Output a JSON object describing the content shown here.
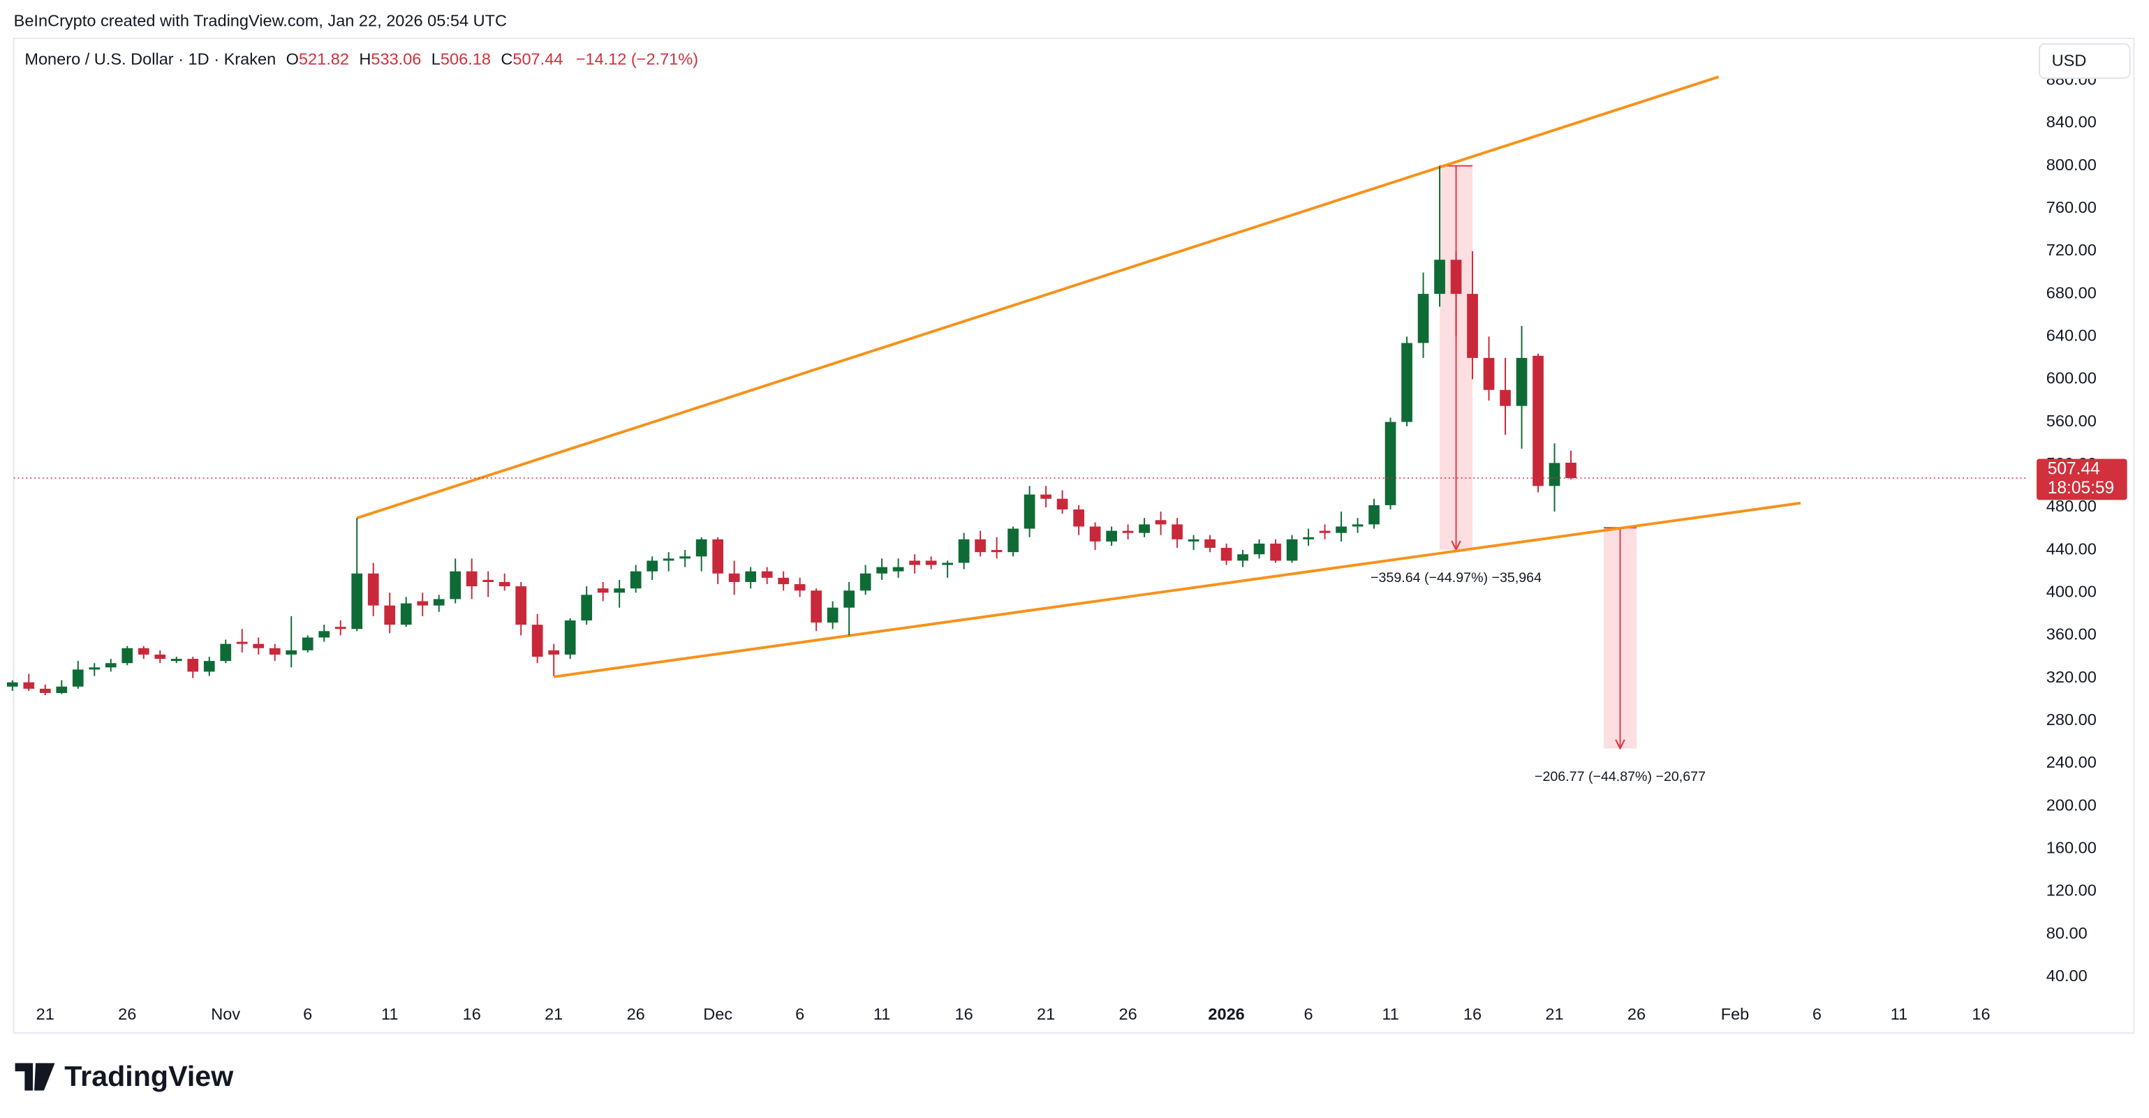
{
  "header": {
    "credit": "BeInCrypto created with TradingView.com, Jan 22, 2026 05:54 UTC"
  },
  "currency_button": "USD",
  "footer": {
    "brand": "TradingView"
  },
  "chart_data": {
    "type": "candlestick",
    "title": "Monero / U.S. Dollar · 1D · Kraken",
    "ohlc_labels": [
      "O",
      "H",
      "L",
      "C"
    ],
    "change": "−14.12 (−2.71%)",
    "countdown": "18:05:59",
    "up_color": "#0e6b35",
    "down_color": "#c9283a",
    "categories": [
      "Oct 19",
      "Oct 20",
      "Oct 21",
      "Oct 22",
      "Oct 23",
      "Oct 24",
      "Oct 25",
      "Oct 26",
      "Oct 27",
      "Oct 28",
      "Oct 29",
      "Oct 30",
      "Oct 31",
      "Nov 1",
      "Nov 2",
      "Nov 3",
      "Nov 4",
      "Nov 5",
      "Nov 6",
      "Nov 7",
      "Nov 8",
      "Nov 9",
      "Nov 10",
      "Nov 11",
      "Nov 12",
      "Nov 13",
      "Nov 14",
      "Nov 15",
      "Nov 16",
      "Nov 17",
      "Nov 18",
      "Nov 19",
      "Nov 20",
      "Nov 21",
      "Nov 22",
      "Nov 23",
      "Nov 24",
      "Nov 25",
      "Nov 26",
      "Nov 27",
      "Nov 28",
      "Nov 29",
      "Nov 30",
      "Dec 1",
      "Dec 2",
      "Dec 3",
      "Dec 4",
      "Dec 5",
      "Dec 6",
      "Dec 7",
      "Dec 8",
      "Dec 9",
      "Dec 10",
      "Dec 11",
      "Dec 12",
      "Dec 13",
      "Dec 14",
      "Dec 15",
      "Dec 16",
      "Dec 17",
      "Dec 18",
      "Dec 19",
      "Dec 20",
      "Dec 21",
      "Dec 22",
      "Dec 23",
      "Dec 24",
      "Dec 25",
      "Dec 26",
      "Dec 27",
      "Dec 28",
      "Dec 29",
      "Dec 30",
      "Dec 31",
      "Jan 1",
      "Jan 2",
      "Jan 3",
      "Jan 4",
      "Jan 5",
      "Jan 6",
      "Jan 7",
      "Jan 8",
      "Jan 9",
      "Jan 10",
      "Jan 11",
      "Jan 12",
      "Jan 13",
      "Jan 14",
      "Jan 15",
      "Jan 16",
      "Jan 17",
      "Jan 18",
      "Jan 19",
      "Jan 20",
      "Jan 21",
      "Jan 22",
      "Jan 23",
      "Jan 24",
      "Jan 25",
      "Jan 26",
      "Jan 27",
      "Jan 28",
      "Jan 29",
      "Jan 30",
      "Jan 31",
      "Feb 1",
      "Feb 2",
      "Feb 3",
      "Feb 4",
      "Feb 5",
      "Feb 6",
      "Feb 7",
      "Feb 8",
      "Feb 9",
      "Feb 10",
      "Feb 11",
      "Feb 12",
      "Feb 13",
      "Feb 14",
      "Feb 15",
      "Feb 16",
      "Feb 17",
      "Feb 18"
    ],
    "open": [
      312,
      316,
      310,
      306,
      312,
      328,
      330,
      334,
      348,
      342,
      336,
      338,
      326,
      336,
      354,
      352,
      348,
      342,
      346,
      358,
      368,
      366,
      418,
      388,
      370,
      392,
      388,
      394,
      420,
      412,
      410,
      406,
      370,
      346,
      342,
      374,
      404,
      400,
      404,
      420,
      430,
      432,
      434,
      450,
      418,
      410,
      420,
      414,
      408,
      402,
      372,
      386,
      402,
      418,
      420,
      430,
      430,
      426,
      428,
      450,
      440,
      438,
      460,
      492,
      488,
      478,
      462,
      448,
      458,
      456,
      468,
      464,
      448,
      450,
      442,
      430,
      436,
      446,
      430,
      450,
      458,
      456,
      462,
      464,
      482,
      560,
      634,
      680,
      712,
      680,
      620,
      590,
      575,
      622,
      500,
      521.82,
      null,
      null,
      null,
      null,
      null,
      null,
      null,
      null,
      null,
      null,
      null,
      null,
      null,
      null,
      null,
      null,
      null,
      null,
      null,
      null,
      null,
      null,
      null,
      null,
      null,
      null,
      null
    ],
    "high": [
      318,
      324,
      314,
      318,
      336,
      334,
      338,
      350,
      350,
      346,
      340,
      340,
      340,
      356,
      366,
      358,
      352,
      378,
      360,
      370,
      374,
      470,
      428,
      400,
      396,
      400,
      398,
      432,
      432,
      420,
      418,
      410,
      380,
      352,
      376,
      406,
      410,
      412,
      426,
      434,
      438,
      440,
      452,
      452,
      430,
      424,
      424,
      420,
      414,
      404,
      392,
      410,
      426,
      432,
      432,
      436,
      434,
      430,
      456,
      458,
      452,
      462,
      500,
      500,
      496,
      482,
      466,
      462,
      464,
      470,
      476,
      470,
      454,
      454,
      446,
      440,
      450,
      450,
      454,
      460,
      464,
      476,
      470,
      488,
      564,
      640,
      700,
      800,
      720,
      720,
      640,
      620,
      650,
      624,
      540,
      533.06,
      null,
      null,
      null,
      null,
      null,
      null,
      null,
      null,
      null,
      null,
      null,
      null,
      null,
      null,
      null,
      null,
      null,
      null,
      null,
      null,
      null,
      null,
      null,
      null,
      null,
      null,
      null
    ],
    "low": [
      308,
      308,
      304,
      305,
      310,
      322,
      326,
      332,
      338,
      334,
      334,
      320,
      322,
      334,
      344,
      342,
      336,
      330,
      344,
      354,
      360,
      364,
      378,
      362,
      368,
      378,
      382,
      390,
      394,
      396,
      402,
      360,
      334,
      322,
      338,
      370,
      392,
      386,
      400,
      412,
      420,
      424,
      420,
      408,
      398,
      404,
      408,
      402,
      396,
      364,
      366,
      360,
      398,
      412,
      414,
      418,
      422,
      414,
      422,
      434,
      432,
      434,
      452,
      480,
      474,
      454,
      440,
      444,
      450,
      452,
      454,
      442,
      440,
      438,
      426,
      424,
      432,
      428,
      428,
      444,
      450,
      448,
      456,
      460,
      478,
      556,
      620,
      668,
      640,
      600,
      580,
      548,
      535,
      494,
      476,
      506.18,
      null,
      null,
      null,
      null,
      null,
      null,
      null,
      null,
      null,
      null,
      null,
      null,
      null,
      null,
      null,
      null,
      null,
      null,
      null,
      null,
      null,
      null,
      null,
      null,
      null,
      null,
      null
    ],
    "close": [
      316,
      310,
      306,
      312,
      328,
      330,
      334,
      348,
      342,
      338,
      338,
      326,
      336,
      352,
      352,
      348,
      342,
      346,
      358,
      364,
      366,
      418,
      388,
      370,
      390,
      388,
      394,
      420,
      406,
      410,
      406,
      370,
      340,
      342,
      374,
      398,
      400,
      404,
      420,
      430,
      432,
      434,
      450,
      418,
      410,
      420,
      414,
      408,
      402,
      372,
      386,
      402,
      418,
      424,
      424,
      426,
      426,
      428,
      450,
      438,
      438,
      460,
      492,
      488,
      478,
      462,
      448,
      458,
      456,
      464,
      464,
      450,
      450,
      442,
      430,
      436,
      446,
      430,
      450,
      452,
      456,
      462,
      464,
      482,
      560,
      634,
      680,
      712,
      680,
      620,
      590,
      575,
      620,
      500,
      521.56,
      507.44,
      null,
      null,
      null,
      null,
      null,
      null,
      null,
      null,
      null,
      null,
      null,
      null,
      null,
      null,
      null,
      null,
      null,
      null,
      null,
      null,
      null,
      null,
      null,
      null,
      null,
      null,
      null
    ],
    "ylim": [
      18.2,
      919.4
    ],
    "yticks": [
      {
        "value": 40,
        "label": "40.00"
      },
      {
        "value": 80,
        "label": "80.00"
      },
      {
        "value": 120,
        "label": "120.00"
      },
      {
        "value": 160,
        "label": "160.00"
      },
      {
        "value": 200,
        "label": "200.00"
      },
      {
        "value": 240,
        "label": "240.00"
      },
      {
        "value": 280,
        "label": "280.00"
      },
      {
        "value": 320,
        "label": "320.00"
      },
      {
        "value": 360,
        "label": "360.00"
      },
      {
        "value": 400,
        "label": "400.00"
      },
      {
        "value": 440,
        "label": "440.00"
      },
      {
        "value": 480,
        "label": "480.00"
      },
      {
        "value": 520,
        "label": "520.00"
      },
      {
        "value": 560,
        "label": "560.00"
      },
      {
        "value": 600,
        "label": "600.00"
      },
      {
        "value": 640,
        "label": "640.00"
      },
      {
        "value": 680,
        "label": "680.00"
      },
      {
        "value": 720,
        "label": "720.00"
      },
      {
        "value": 760,
        "label": "760.00"
      },
      {
        "value": 800,
        "label": "800.00"
      },
      {
        "value": 840,
        "label": "840.00"
      },
      {
        "value": 880,
        "label": "880.00"
      }
    ],
    "xticks": [
      {
        "value": "Oct 21",
        "label": "21"
      },
      {
        "value": "Oct 26",
        "label": "26"
      },
      {
        "value": "Nov 1",
        "label": "Nov"
      },
      {
        "value": "Nov 6",
        "label": "6"
      },
      {
        "value": "Nov 11",
        "label": "11"
      },
      {
        "value": "Nov 16",
        "label": "16"
      },
      {
        "value": "Nov 21",
        "label": "21"
      },
      {
        "value": "Nov 26",
        "label": "26"
      },
      {
        "value": "Dec 1",
        "label": "Dec"
      },
      {
        "value": "Dec 6",
        "label": "6"
      },
      {
        "value": "Dec 11",
        "label": "11"
      },
      {
        "value": "Dec 16",
        "label": "16"
      },
      {
        "value": "Dec 21",
        "label": "21"
      },
      {
        "value": "Dec 26",
        "label": "26"
      },
      {
        "value": "Jan 1",
        "label": "2026",
        "bold": true
      },
      {
        "value": "Jan 6",
        "label": "6"
      },
      {
        "value": "Jan 11",
        "label": "11"
      },
      {
        "value": "Jan 16",
        "label": "16"
      },
      {
        "value": "Jan 21",
        "label": "21"
      },
      {
        "value": "Jan 26",
        "label": "26"
      },
      {
        "value": "Feb 1",
        "label": "Feb"
      },
      {
        "value": "Feb 6",
        "label": "6"
      },
      {
        "value": "Feb 11",
        "label": "11"
      },
      {
        "value": "Feb 16",
        "label": "16"
      }
    ],
    "trendlines": [
      {
        "color": "#f5921b",
        "x": [
          "Nov 9",
          "Jan 31"
        ],
        "values": [
          470,
          883.4
        ]
      },
      {
        "color": "#f5921b",
        "x": [
          "Nov 21",
          "Feb 5"
        ],
        "values": [
          321.2,
          484
        ]
      }
    ],
    "measures": [
      {
        "start": "Jan 14",
        "end": "Jan 16",
        "from": 800,
        "to": 440.36,
        "label": "−359.64 (−44.97%) −35,964"
      },
      {
        "start": "Jan 24",
        "end": "Jan 26",
        "from": 460.81,
        "to": 254.04,
        "label": "−206.77 (−44.87%) −20,677"
      }
    ]
  }
}
